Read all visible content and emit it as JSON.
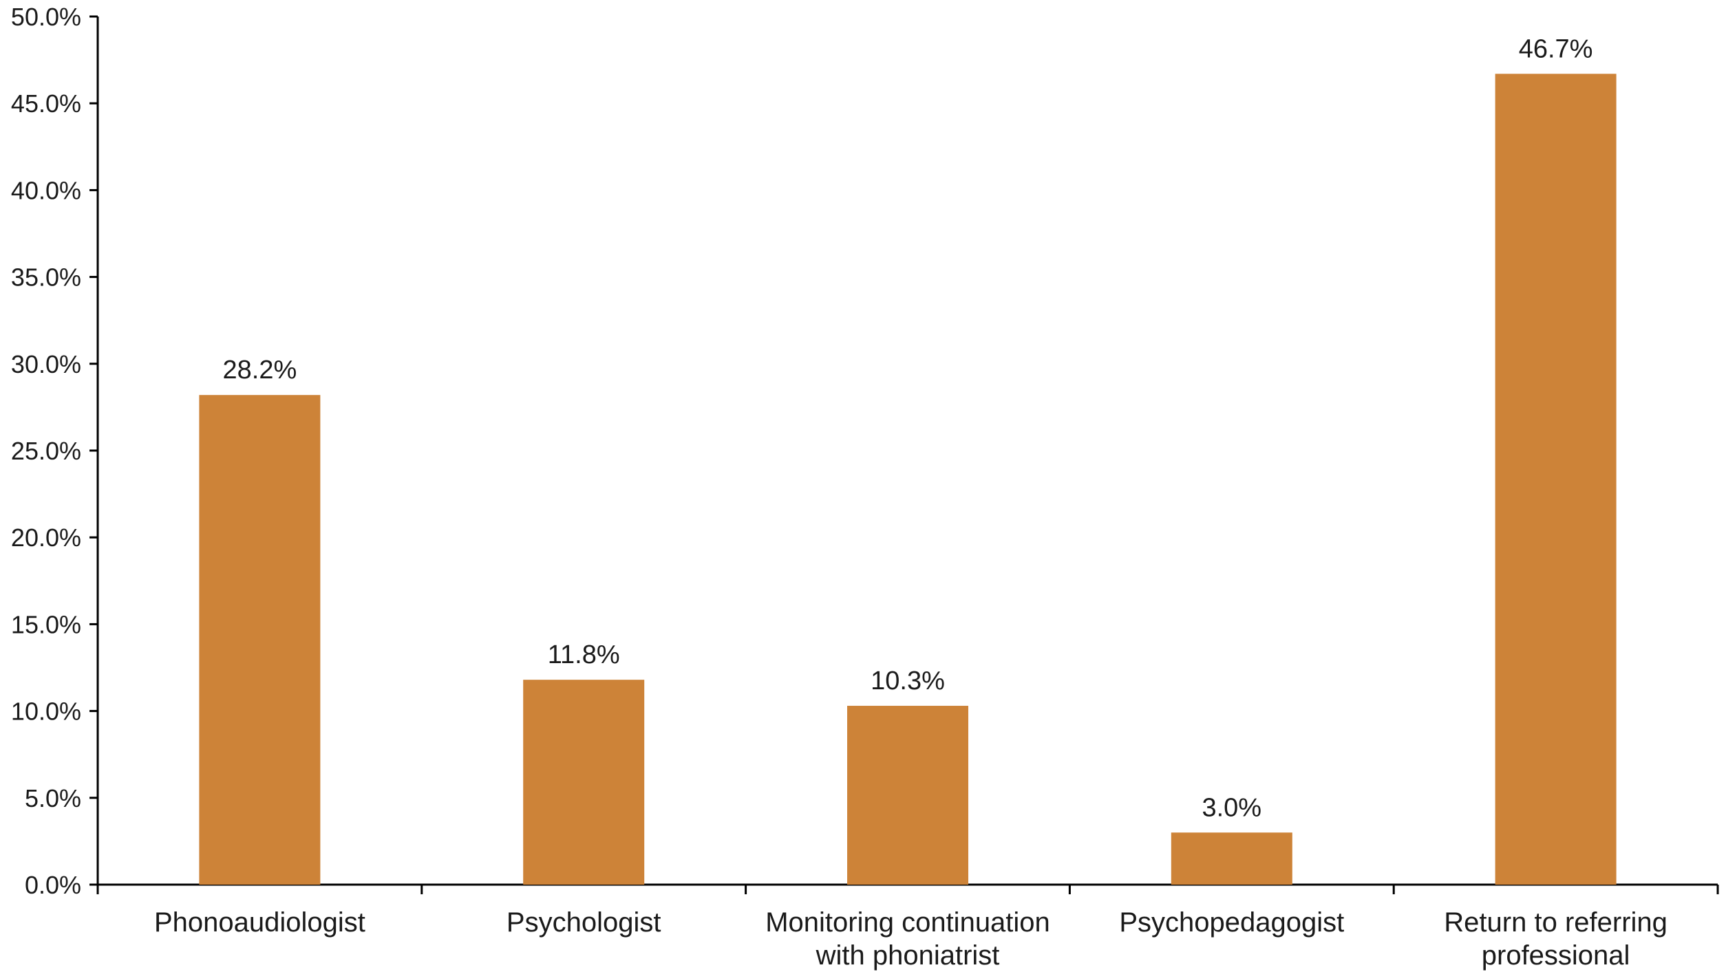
{
  "chart_data": {
    "type": "bar",
    "title": "",
    "xlabel": "",
    "ylabel": "",
    "categories": [
      [
        "Phonoaudiologist"
      ],
      [
        "Psychologist"
      ],
      [
        "Monitoring continuation",
        "with phoniatrist"
      ],
      [
        "Psychopedagogist"
      ],
      [
        "Return to referring",
        "professional"
      ]
    ],
    "values": [
      28.2,
      11.8,
      10.3,
      3.0,
      46.7
    ],
    "value_labels": [
      "28.2%",
      "11.8%",
      "10.3%",
      "3.0%",
      "46.7%"
    ],
    "ylim": [
      0,
      50
    ],
    "yticks": [
      0,
      5,
      10,
      15,
      20,
      25,
      30,
      35,
      40,
      45,
      50
    ],
    "ytick_labels": [
      "0.0%",
      "5.0%",
      "10.0%",
      "15.0%",
      "20.0%",
      "25.0%",
      "30.0%",
      "35.0%",
      "40.0%",
      "45.0%",
      "50.0%"
    ],
    "grid": false,
    "legend": "none",
    "bar_color": "#CD8338"
  }
}
